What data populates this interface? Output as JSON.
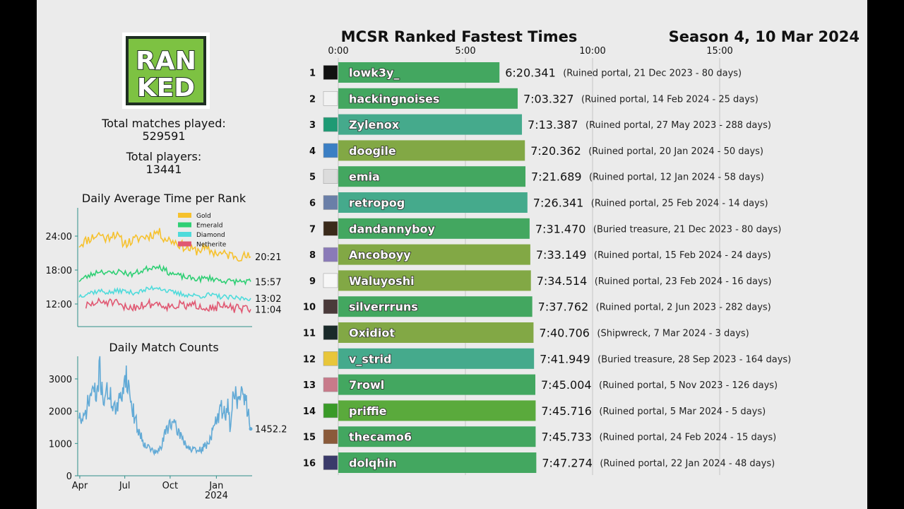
{
  "header": {
    "title": "MCSR Ranked Fastest Times",
    "season": "Season 4, 10 Mar 2024"
  },
  "logo": {
    "text_line1": "RAN",
    "text_line2": "KED",
    "fill": "#7dc242",
    "border": "#1e2e22"
  },
  "stats": {
    "matches_label": "Total matches played:",
    "matches_value": "529591",
    "players_label": "Total players:",
    "players_value": "13441"
  },
  "chart_data": [
    {
      "type": "bar",
      "title": "MCSR Ranked Fastest Times",
      "orientation": "horizontal",
      "x_ticks": [
        "0:00",
        "5:00",
        "10:00",
        "15:00"
      ],
      "xlim": [
        0,
        1080
      ],
      "grid": true,
      "rows": [
        {
          "rank": "1",
          "player": "lowk3y_",
          "seconds": 380.341,
          "time": "6:20.341",
          "detail": "(Ruined portal, 21 Dec 2023 - 80 days)",
          "color": "#43a760",
          "icon": "#111111"
        },
        {
          "rank": "2",
          "player": "hackingnoises",
          "seconds": 423.327,
          "time": "7:03.327",
          "detail": "(Ruined portal, 14 Feb 2024 - 25 days)",
          "color": "#43a760",
          "icon": "#f2f2f2"
        },
        {
          "rank": "3",
          "player": "Zylenox",
          "seconds": 433.387,
          "time": "7:13.387",
          "detail": "(Ruined portal, 27 May 2023 - 288 days)",
          "color": "#45aa8c",
          "icon": "#1e9a74"
        },
        {
          "rank": "4",
          "player": "doogile",
          "seconds": 440.362,
          "time": "7:20.362",
          "detail": "(Ruined portal, 20 Jan 2024 - 50 days)",
          "color": "#82a845",
          "icon": "#3b7fc4"
        },
        {
          "rank": "5",
          "player": "emia",
          "seconds": 441.689,
          "time": "7:21.689",
          "detail": "(Ruined portal, 12 Jan 2024 - 58 days)",
          "color": "#43a760",
          "icon": "#dcdcdc"
        },
        {
          "rank": "6",
          "player": "retropog",
          "seconds": 446.341,
          "time": "7:26.341",
          "detail": "(Ruined portal, 25 Feb 2024 - 14 days)",
          "color": "#45aa8c",
          "icon": "#6a7fa8"
        },
        {
          "rank": "7",
          "player": "dandannyboy",
          "seconds": 451.47,
          "time": "7:31.470",
          "detail": "(Buried treasure, 21 Dec 2023 - 80 days)",
          "color": "#43a760",
          "icon": "#3a2a1a"
        },
        {
          "rank": "8",
          "player": "Ancoboyy",
          "seconds": 453.149,
          "time": "7:33.149",
          "detail": "(Ruined portal, 15 Feb 2024 - 24 days)",
          "color": "#82a845",
          "icon": "#8a7ab8"
        },
        {
          "rank": "9",
          "player": "Waluyoshi",
          "seconds": 454.514,
          "time": "7:34.514",
          "detail": "(Ruined portal, 23 Feb 2024 - 16 days)",
          "color": "#82a845",
          "icon": "#f7f7f7"
        },
        {
          "rank": "10",
          "player": "silverrruns",
          "seconds": 457.762,
          "time": "7:37.762",
          "detail": "(Ruined portal, 2 Jun 2023 - 282 days)",
          "color": "#43a760",
          "icon": "#4a3a3a"
        },
        {
          "rank": "11",
          "player": "Oxidiot",
          "seconds": 460.706,
          "time": "7:40.706",
          "detail": "(Shipwreck, 7 Mar 2024 - 3 days)",
          "color": "#82a845",
          "icon": "#1a2a2a"
        },
        {
          "rank": "12",
          "player": "v_strid",
          "seconds": 461.949,
          "time": "7:41.949",
          "detail": "(Buried treasure, 28 Sep 2023 - 164 days)",
          "color": "#45aa8c",
          "icon": "#e8c63a"
        },
        {
          "rank": "13",
          "player": "7rowl",
          "seconds": 465.004,
          "time": "7:45.004",
          "detail": "(Ruined portal, 5 Nov 2023 - 126 days)",
          "color": "#43a760",
          "icon": "#c87a8a"
        },
        {
          "rank": "14",
          "player": "priffie",
          "seconds": 465.716,
          "time": "7:45.716",
          "detail": "(Ruined portal, 5 Mar 2024 - 5 days)",
          "color": "#5aaa3c",
          "icon": "#3a9a28"
        },
        {
          "rank": "15",
          "player": "thecamo6",
          "seconds": 465.733,
          "time": "7:45.733",
          "detail": "(Ruined portal, 24 Feb 2024 - 15 days)",
          "color": "#43a760",
          "icon": "#8a5a3a"
        },
        {
          "rank": "16",
          "player": "dolqhin",
          "seconds": 467.274,
          "time": "7:47.274",
          "detail": "(Ruined portal, 22 Jan 2024 - 48 days)",
          "color": "#43a760",
          "icon": "#3a3a6a"
        }
      ]
    },
    {
      "type": "line",
      "title": "Daily Average Time per Rank",
      "y_unit": "minutes",
      "ylim": [
        8,
        29
      ],
      "y_ticks": [
        {
          "label": "12:00",
          "value": 12
        },
        {
          "label": "18:00",
          "value": 18
        },
        {
          "label": "24:00",
          "value": 24
        }
      ],
      "legend_placement": "top-right",
      "series": [
        {
          "name": "Gold",
          "color": "#f6c12d",
          "end_label": "20:21",
          "end_value": 20.35,
          "anchors": [
            [
              0,
              22.5
            ],
            [
              0.05,
              23.4
            ],
            [
              0.12,
              24.4
            ],
            [
              0.16,
              23.5
            ],
            [
              0.2,
              24.6
            ],
            [
              0.26,
              22.8
            ],
            [
              0.3,
              23.0
            ],
            [
              0.36,
              23.8
            ],
            [
              0.4,
              24.0
            ],
            [
              0.46,
              24.8
            ],
            [
              0.5,
              23.6
            ],
            [
              0.56,
              23.0
            ],
            [
              0.62,
              22.0
            ],
            [
              0.68,
              21.4
            ],
            [
              0.72,
              21.8
            ],
            [
              0.78,
              21.2
            ],
            [
              0.84,
              20.8
            ],
            [
              0.9,
              20.6
            ],
            [
              0.95,
              20.4
            ],
            [
              1,
              20.35
            ]
          ],
          "noise": 0.9,
          "seed": 11
        },
        {
          "name": "Emerald",
          "color": "#2fcf74",
          "end_label": "15:57",
          "end_value": 15.95,
          "anchors": [
            [
              0,
              16.2
            ],
            [
              0.06,
              17.0
            ],
            [
              0.12,
              17.9
            ],
            [
              0.18,
              17.4
            ],
            [
              0.24,
              17.8
            ],
            [
              0.3,
              17.2
            ],
            [
              0.36,
              17.8
            ],
            [
              0.4,
              18.3
            ],
            [
              0.46,
              18.8
            ],
            [
              0.52,
              17.6
            ],
            [
              0.58,
              17.0
            ],
            [
              0.64,
              16.6
            ],
            [
              0.7,
              16.4
            ],
            [
              0.76,
              16.6
            ],
            [
              0.82,
              16.2
            ],
            [
              0.88,
              16.0
            ],
            [
              0.94,
              16.0
            ],
            [
              1,
              15.95
            ]
          ],
          "noise": 0.5,
          "seed": 23
        },
        {
          "name": "Diamond",
          "color": "#4fdbdb",
          "end_label": "13:02",
          "end_value": 13.03,
          "anchors": [
            [
              0,
              13.4
            ],
            [
              0.06,
              14.0
            ],
            [
              0.12,
              14.3
            ],
            [
              0.18,
              14.0
            ],
            [
              0.24,
              14.4
            ],
            [
              0.3,
              14.0
            ],
            [
              0.36,
              14.2
            ],
            [
              0.42,
              14.8
            ],
            [
              0.46,
              15.0
            ],
            [
              0.52,
              14.2
            ],
            [
              0.58,
              13.8
            ],
            [
              0.64,
              13.6
            ],
            [
              0.7,
              13.4
            ],
            [
              0.76,
              13.6
            ],
            [
              0.82,
              13.3
            ],
            [
              0.88,
              13.1
            ],
            [
              0.94,
              13.0
            ],
            [
              1,
              13.03
            ]
          ],
          "noise": 0.45,
          "seed": 37
        },
        {
          "name": "Netherite",
          "color": "#e05872",
          "end_label": "11:04",
          "end_value": 11.07,
          "anchors": [
            [
              0.04,
              11.6
            ],
            [
              0.1,
              12.2
            ],
            [
              0.16,
              12.4
            ],
            [
              0.22,
              12.0
            ],
            [
              0.26,
              11.3
            ],
            [
              0.34,
              11.6
            ],
            [
              0.4,
              12.0
            ],
            [
              0.46,
              12.1
            ],
            [
              0.52,
              11.6
            ],
            [
              0.58,
              11.8
            ],
            [
              0.64,
              11.6
            ],
            [
              0.7,
              11.8
            ],
            [
              0.76,
              11.4
            ],
            [
              0.82,
              11.6
            ],
            [
              0.88,
              11.3
            ],
            [
              0.94,
              11.1
            ],
            [
              1,
              11.07
            ]
          ],
          "noise": 0.8,
          "seed": 51
        }
      ]
    },
    {
      "type": "line",
      "title": "Daily Match Counts",
      "ylim": [
        0,
        3700
      ],
      "y_ticks": [
        "0",
        "1000",
        "2000",
        "3000"
      ],
      "x_ticks": [
        {
          "label": "Apr",
          "pos": 0.012
        },
        {
          "label": "Jul",
          "pos": 0.27
        },
        {
          "label": "Oct",
          "pos": 0.53
        },
        {
          "label": "Jan",
          "pos": 0.795
        }
      ],
      "x_year_label": "2024",
      "end_label": "1452.2",
      "end_value": 1452.2,
      "color": "#62aad6",
      "anchors": [
        [
          0,
          1900
        ],
        [
          0.02,
          1600
        ],
        [
          0.05,
          2200
        ],
        [
          0.08,
          2700
        ],
        [
          0.1,
          2400
        ],
        [
          0.12,
          3300
        ],
        [
          0.14,
          2400
        ],
        [
          0.17,
          2600
        ],
        [
          0.2,
          2200
        ],
        [
          0.22,
          2000
        ],
        [
          0.25,
          2600
        ],
        [
          0.27,
          3200
        ],
        [
          0.29,
          2700
        ],
        [
          0.31,
          2100
        ],
        [
          0.34,
          1500
        ],
        [
          0.37,
          1100
        ],
        [
          0.4,
          900
        ],
        [
          0.43,
          780
        ],
        [
          0.45,
          700
        ],
        [
          0.48,
          900
        ],
        [
          0.5,
          1300
        ],
        [
          0.53,
          1700
        ],
        [
          0.56,
          1500
        ],
        [
          0.6,
          1200
        ],
        [
          0.63,
          900
        ],
        [
          0.66,
          800
        ],
        [
          0.69,
          750
        ],
        [
          0.72,
          850
        ],
        [
          0.75,
          1000
        ],
        [
          0.78,
          1400
        ],
        [
          0.8,
          1700
        ],
        [
          0.83,
          2100
        ],
        [
          0.85,
          1900
        ],
        [
          0.87,
          2300
        ],
        [
          0.88,
          1200
        ],
        [
          0.9,
          2700
        ],
        [
          0.93,
          2300
        ],
        [
          0.96,
          2600
        ],
        [
          0.98,
          2100
        ],
        [
          1,
          1452.2
        ]
      ],
      "noise": 320,
      "seed": 71
    }
  ]
}
